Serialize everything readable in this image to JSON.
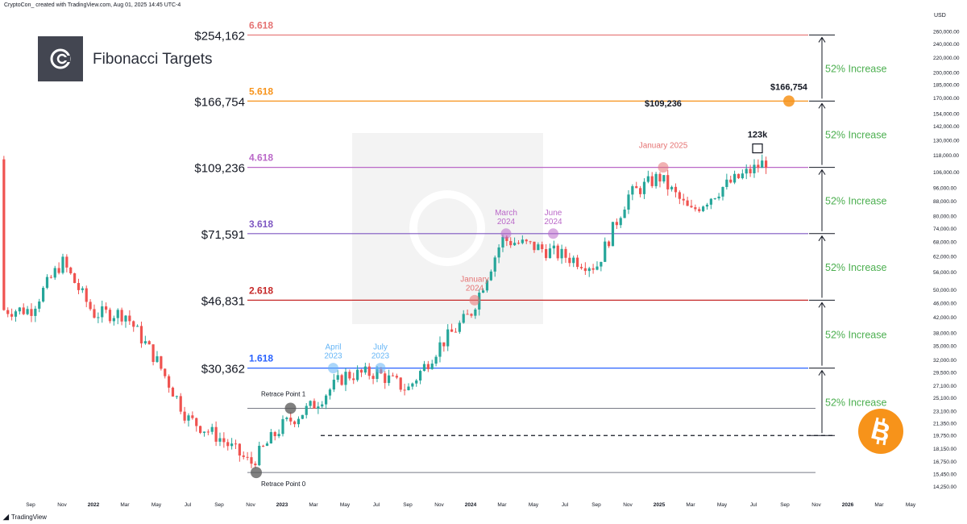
{
  "header": {
    "text": "CryptoCon_ created with TradingView.com, Aug 01, 2025 14:45 UTC-4"
  },
  "logo": {
    "title": "Fibonacci Targets"
  },
  "footer": {
    "brand": "TradingView"
  },
  "axis": {
    "currency": "USD"
  },
  "colors": {
    "up": "#26a69a",
    "down": "#ef5350",
    "increase_text": "#4caf50",
    "bitcoin": "#f7931a"
  },
  "chart_data": {
    "type": "line",
    "title": "",
    "x": [
      "2021-09",
      "2021-11",
      "2022-01",
      "2022-03",
      "2022-05",
      "2022-07",
      "2022-09",
      "2022-11",
      "2023-01",
      "2023-03",
      "2023-05",
      "2023-07",
      "2023-09",
      "2023-11",
      "2024-01",
      "2024-03",
      "2024-05",
      "2024-07",
      "2024-09",
      "2024-11",
      "2025-01",
      "2025-03",
      "2025-05",
      "2025-07",
      "2025-08"
    ],
    "series": [
      {
        "values": [
          44000,
          60000,
          43000,
          43000,
          32000,
          22000,
          19500,
          16500,
          21000,
          24000,
          29000,
          29500,
          26500,
          35000,
          43000,
          69000,
          66000,
          62000,
          58000,
          91000,
          103000,
          82000,
          96000,
          108000,
          115000
        ]
      }
    ],
    "ylabel": "USD",
    "y_scale": "log",
    "ylim": [
      14250,
      275000
    ],
    "x_tick_labels": [
      "Sep",
      "Nov",
      "2022",
      "Mar",
      "May",
      "Jul",
      "Sep",
      "Nov",
      "2023",
      "Mar",
      "May",
      "Jul",
      "Sep",
      "Nov",
      "2024",
      "Mar",
      "May",
      "Jul",
      "Sep",
      "Nov",
      "2025",
      "Mar",
      "May",
      "Jul",
      "Sep",
      "Nov",
      "2026",
      "Mar",
      "May"
    ],
    "y_tick_labels": [
      "260,000.00",
      "240,000.00",
      "220,000.00",
      "200,000.00",
      "185,000.00",
      "170,000.00",
      "154,000.00",
      "142,000.00",
      "130,000.00",
      "118,000.00",
      "106,000.00",
      "96,000.00",
      "88,000.00",
      "80,000.00",
      "74,000.00",
      "68,000.00",
      "62,000.00",
      "56,000.00",
      "50,000.00",
      "46,000.00",
      "42,000.00",
      "38,000.00",
      "35,000.00",
      "32,000.00",
      "29,500.00",
      "27,100.00",
      "25,100.00",
      "23,100.00",
      "21,350.00",
      "19,750.00",
      "18,150.00",
      "16,750.00",
      "15,450.00",
      "14,250.00"
    ],
    "fib_levels": [
      {
        "ratio": "6.618",
        "price_label": "$254,162",
        "price": 254162,
        "color": "#e57373"
      },
      {
        "ratio": "5.618",
        "price_label": "$166,754",
        "price": 166754,
        "color": "#f7931a"
      },
      {
        "ratio": "4.618",
        "price_label": "$109,236",
        "price": 109236,
        "color": "#ba68c8"
      },
      {
        "ratio": "3.618",
        "price_label": "$71,591",
        "price": 71591,
        "color": "#7e57c2"
      },
      {
        "ratio": "2.618",
        "price_label": "$46,831",
        "price": 46831,
        "color": "#c62828"
      },
      {
        "ratio": "1.618",
        "price_label": "$30,362",
        "price": 30362,
        "color": "#2962ff"
      }
    ],
    "retrace_levels": [
      {
        "label": "Retrace Point 1",
        "price": 23500
      },
      {
        "label": "Retrace Point 0",
        "price": 15600
      }
    ],
    "dashed_level": 19750,
    "increase_labels": [
      "52% Increase",
      "52% Increase",
      "52% Increase",
      "52% Increase",
      "52% Increase",
      "52% Increase"
    ],
    "annotations": [
      {
        "text": "April\n2023",
        "date": "2023-04",
        "price": 30362,
        "color": "#64b5f6"
      },
      {
        "text": "July\n2023",
        "date": "2023-07",
        "price": 30362,
        "color": "#64b5f6"
      },
      {
        "text": "January\n2024",
        "date": "2024-01",
        "price": 46831,
        "color": "#e57373"
      },
      {
        "text": "March\n2024",
        "date": "2024-03",
        "price": 71591,
        "color": "#ba68c8"
      },
      {
        "text": "June\n2024",
        "date": "2024-06",
        "price": 71591,
        "color": "#ba68c8"
      },
      {
        "text": "January 2025",
        "date": "2025-01",
        "price": 109236,
        "color": "#e57373"
      }
    ],
    "value_labels": [
      {
        "text": "$109,236",
        "date": "2025-01",
        "price": 150000
      },
      {
        "text": "123k",
        "date": "2025-07",
        "price": 123000
      },
      {
        "text": "$166,754",
        "date": "2025-09",
        "price": 166754
      }
    ]
  }
}
